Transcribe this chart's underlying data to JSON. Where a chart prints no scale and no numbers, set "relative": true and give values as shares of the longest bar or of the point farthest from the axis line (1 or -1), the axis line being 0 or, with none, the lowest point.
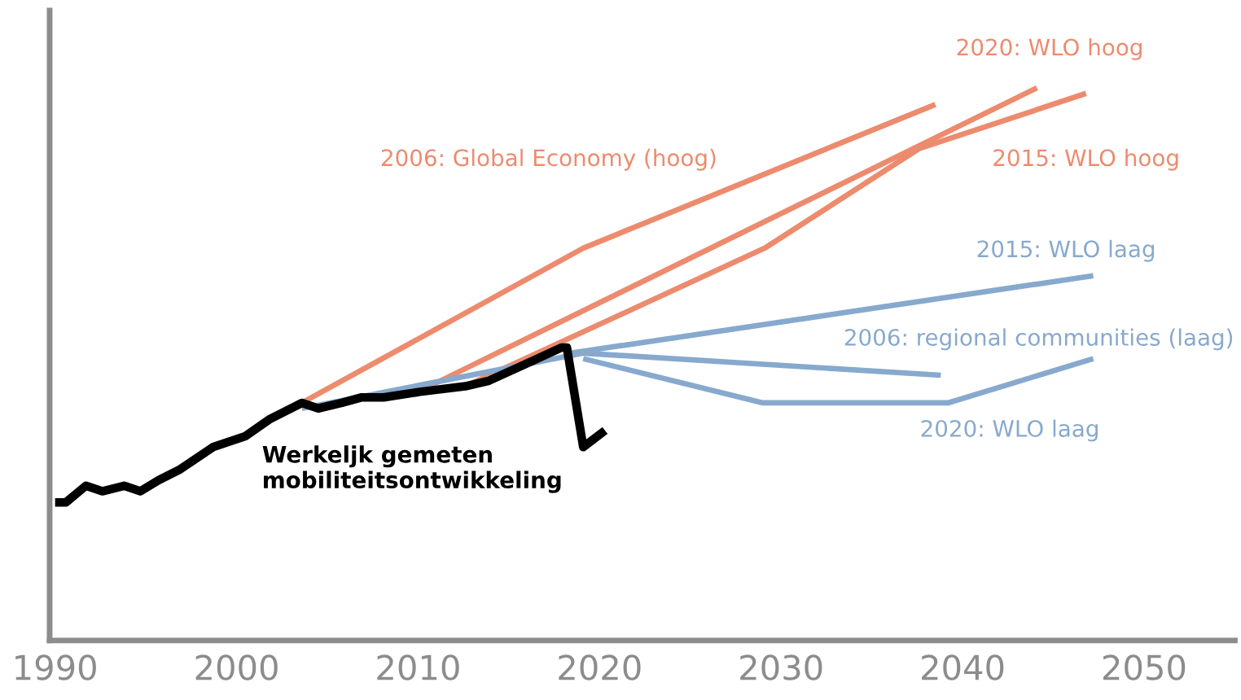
{
  "chart_data": {
    "type": "line",
    "relative": true,
    "xlim": [
      1989.7,
      2055
    ],
    "xticks": [
      1990,
      2000,
      2010,
      2020,
      2030,
      2040,
      2050
    ],
    "grid": false,
    "legend": false,
    "marker": "none",
    "line_style": "solid",
    "series": [
      {
        "name": "2006: Global Economy (hoog)",
        "color": "#ec8b6e",
        "x": [
          2003.6,
          2019.1,
          2038.5
        ],
        "values": [
          0.43,
          0.71,
          0.97
        ]
      },
      {
        "name": "2020: WLO hoog",
        "color": "#ec8b6e",
        "x": [
          2010.0,
          2044.1
        ],
        "values": [
          0.45,
          1.0
        ]
      },
      {
        "name": "2015: WLO hoog",
        "color": "#ec8b6e",
        "x": [
          2012.6,
          2029.1,
          2037.6,
          2046.8
        ],
        "values": [
          0.46,
          0.71,
          0.89,
          0.99
        ]
      },
      {
        "name": "2015: WLO laag",
        "color": "#87a9cd",
        "x": [
          2018.4,
          2047.2
        ],
        "values": [
          0.52,
          0.66
        ]
      },
      {
        "name": "2006: regional communities (laag)",
        "color": "#87a9cd",
        "x": [
          2003.6,
          2019.1,
          2038.8
        ],
        "values": [
          0.42,
          0.52,
          0.48
        ]
      },
      {
        "name": "2020: WLO laag",
        "color": "#87a9cd",
        "x": [
          2019.1,
          2029.0,
          2039.2,
          2047.2
        ],
        "values": [
          0.51,
          0.43,
          0.43,
          0.51
        ]
      },
      {
        "name": "Werkeljk gemeten mobiliteitsontwikkeling",
        "color": "#000000",
        "x": [
          1990.0,
          1990.6,
          1991.7,
          1992.6,
          1993.8,
          1994.7,
          1995.7,
          1996.9,
          1997.8,
          1998.7,
          2000.5,
          2001.8,
          2003.6,
          2004.5,
          2005.8,
          2006.9,
          2008.1,
          2010.1,
          2012.6,
          2013.9,
          2015.9,
          2017.9,
          2018.2,
          2019.1,
          2020.3
        ],
        "values": [
          0.25,
          0.25,
          0.28,
          0.27,
          0.28,
          0.27,
          0.29,
          0.31,
          0.33,
          0.35,
          0.37,
          0.4,
          0.43,
          0.42,
          0.43,
          0.44,
          0.44,
          0.45,
          0.46,
          0.47,
          0.5,
          0.53,
          0.53,
          0.35,
          0.38
        ]
      }
    ]
  }
}
